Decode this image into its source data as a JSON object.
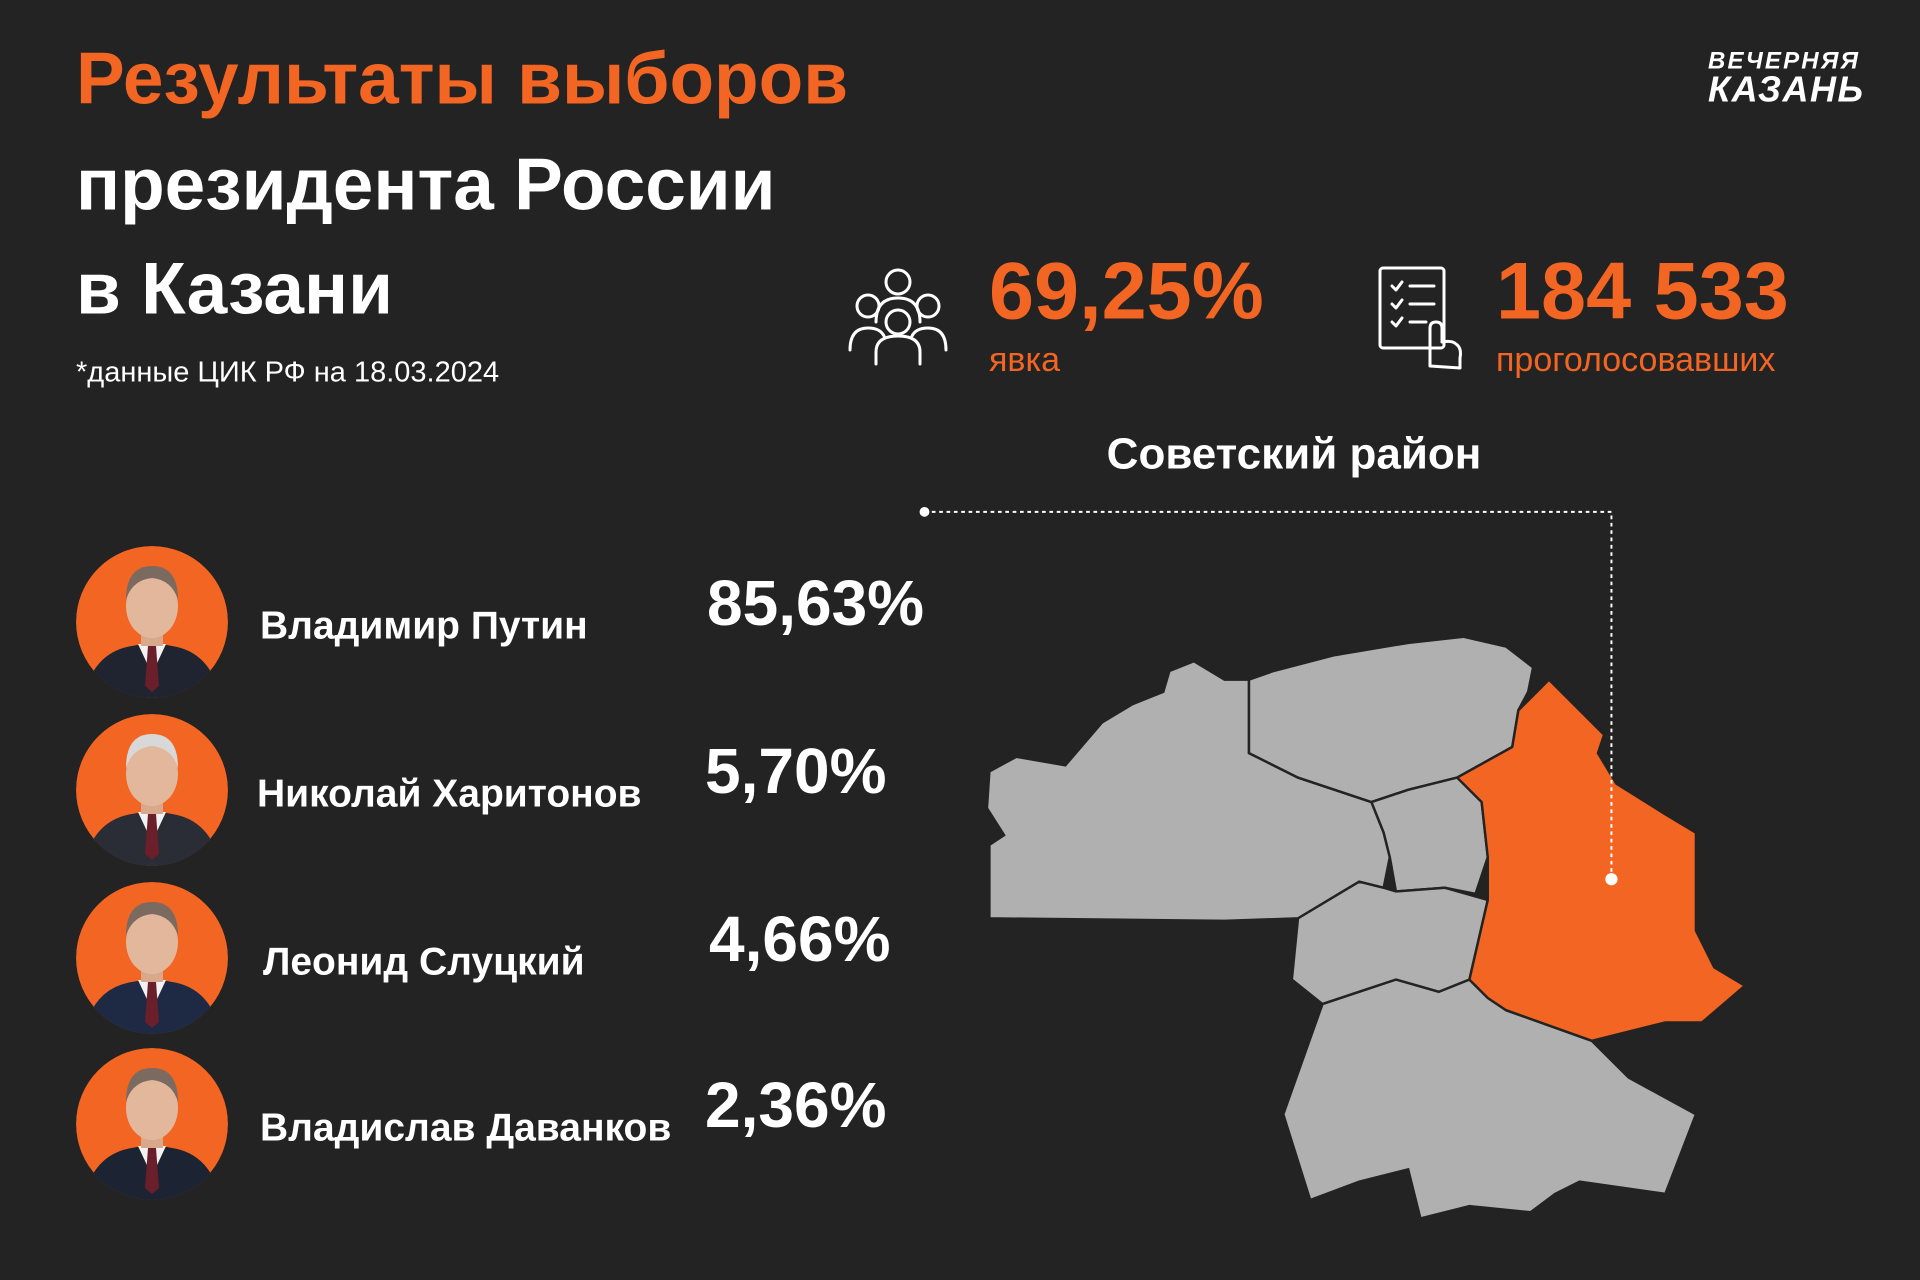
{
  "header": {
    "title_line1": "Результаты выборов",
    "title_line2": "президента России",
    "title_line3": "в Казани",
    "note": "*данные ЦИК РФ на 18.03.2024"
  },
  "logo": {
    "line1": "ВЕЧЕРНЯЯ",
    "line2": "КАЗАНЬ"
  },
  "stats": [
    {
      "value": "69,25%",
      "label": "явка"
    },
    {
      "value": "184 533",
      "label": "проголосовавших"
    }
  ],
  "district": "Советский район",
  "candidates": [
    {
      "name": "Владимир Путин",
      "value": "85,63%"
    },
    {
      "name": "Николай Харитонов",
      "value": "5,70%"
    },
    {
      "name": "Леонид Слуцкий",
      "value": "4,66%"
    },
    {
      "name": "Владислав Даванков",
      "value": "2,36%"
    }
  ]
}
